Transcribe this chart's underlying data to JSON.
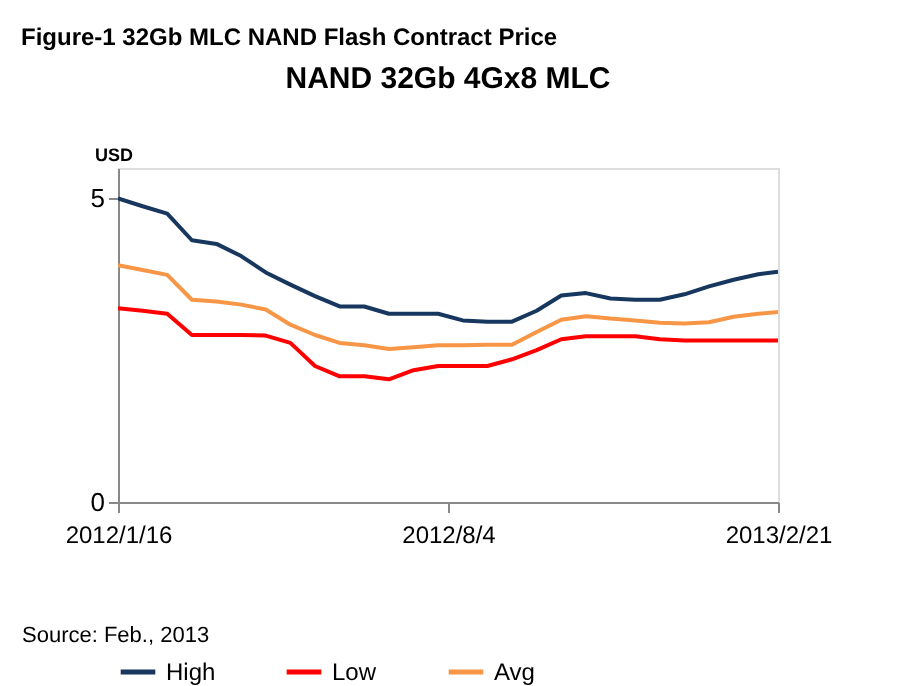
{
  "chart_data": {
    "type": "line",
    "title": "Figure-1 32Gb MLC NAND Flash Contract Price",
    "subtitle": "NAND 32Gb 4Gx8 MLC",
    "ylabel": "USD",
    "annotations": [
      "Source: Feb., 2013"
    ],
    "x": [
      "2012-01-16",
      "2012-01-31",
      "2012-02-15",
      "2012-03-01",
      "2012-03-16",
      "2012-03-31",
      "2012-04-15",
      "2012-04-30",
      "2012-05-15",
      "2012-05-30",
      "2012-06-14",
      "2012-06-29",
      "2012-07-14",
      "2012-07-29",
      "2012-08-13",
      "2012-08-28",
      "2012-09-12",
      "2012-09-27",
      "2012-10-12",
      "2012-10-27",
      "2012-11-11",
      "2012-11-26",
      "2012-12-11",
      "2012-12-26",
      "2013-01-10",
      "2013-01-25",
      "2013-02-09",
      "2013-02-21"
    ],
    "series": [
      {
        "name": "High",
        "color": "#17375e",
        "values": [
          5.0,
          4.87,
          4.75,
          4.31,
          4.25,
          4.05,
          3.78,
          3.58,
          3.39,
          3.22,
          3.22,
          3.1,
          3.1,
          3.1,
          2.99,
          2.97,
          2.97,
          3.15,
          3.4,
          3.44,
          3.35,
          3.33,
          3.33,
          3.42,
          3.55,
          3.66,
          3.75,
          3.79
        ]
      },
      {
        "name": "Low",
        "color": "#ff0000",
        "values": [
          3.19,
          3.15,
          3.1,
          2.75,
          2.75,
          2.75,
          2.74,
          2.62,
          2.24,
          2.07,
          2.07,
          2.02,
          2.17,
          2.24,
          2.24,
          2.24,
          2.35,
          2.5,
          2.68,
          2.73,
          2.73,
          2.73,
          2.68,
          2.66,
          2.66,
          2.66,
          2.66,
          2.66
        ]
      },
      {
        "name": "Avg",
        "color": "#f79646",
        "values": [
          3.9,
          3.82,
          3.74,
          3.33,
          3.3,
          3.25,
          3.17,
          2.92,
          2.75,
          2.62,
          2.58,
          2.52,
          2.55,
          2.58,
          2.58,
          2.59,
          2.59,
          2.8,
          3.0,
          3.06,
          3.02,
          2.99,
          2.95,
          2.94,
          2.96,
          3.05,
          3.1,
          3.13
        ]
      }
    ],
    "xlim": [
      "2012-01-16",
      "2013-02-21"
    ],
    "xticks": [
      {
        "value": "2012-01-16",
        "label": "2012/1/16"
      },
      {
        "value": "2012-08-04",
        "label": "2012/8/4"
      },
      {
        "value": "2013-02-21",
        "label": "2013/2/21"
      }
    ],
    "ylim": [
      0,
      5.5
    ],
    "yticks": [
      0,
      5
    ],
    "grid": false,
    "legend": "bottom",
    "line_style": "solid",
    "marker": "none"
  }
}
